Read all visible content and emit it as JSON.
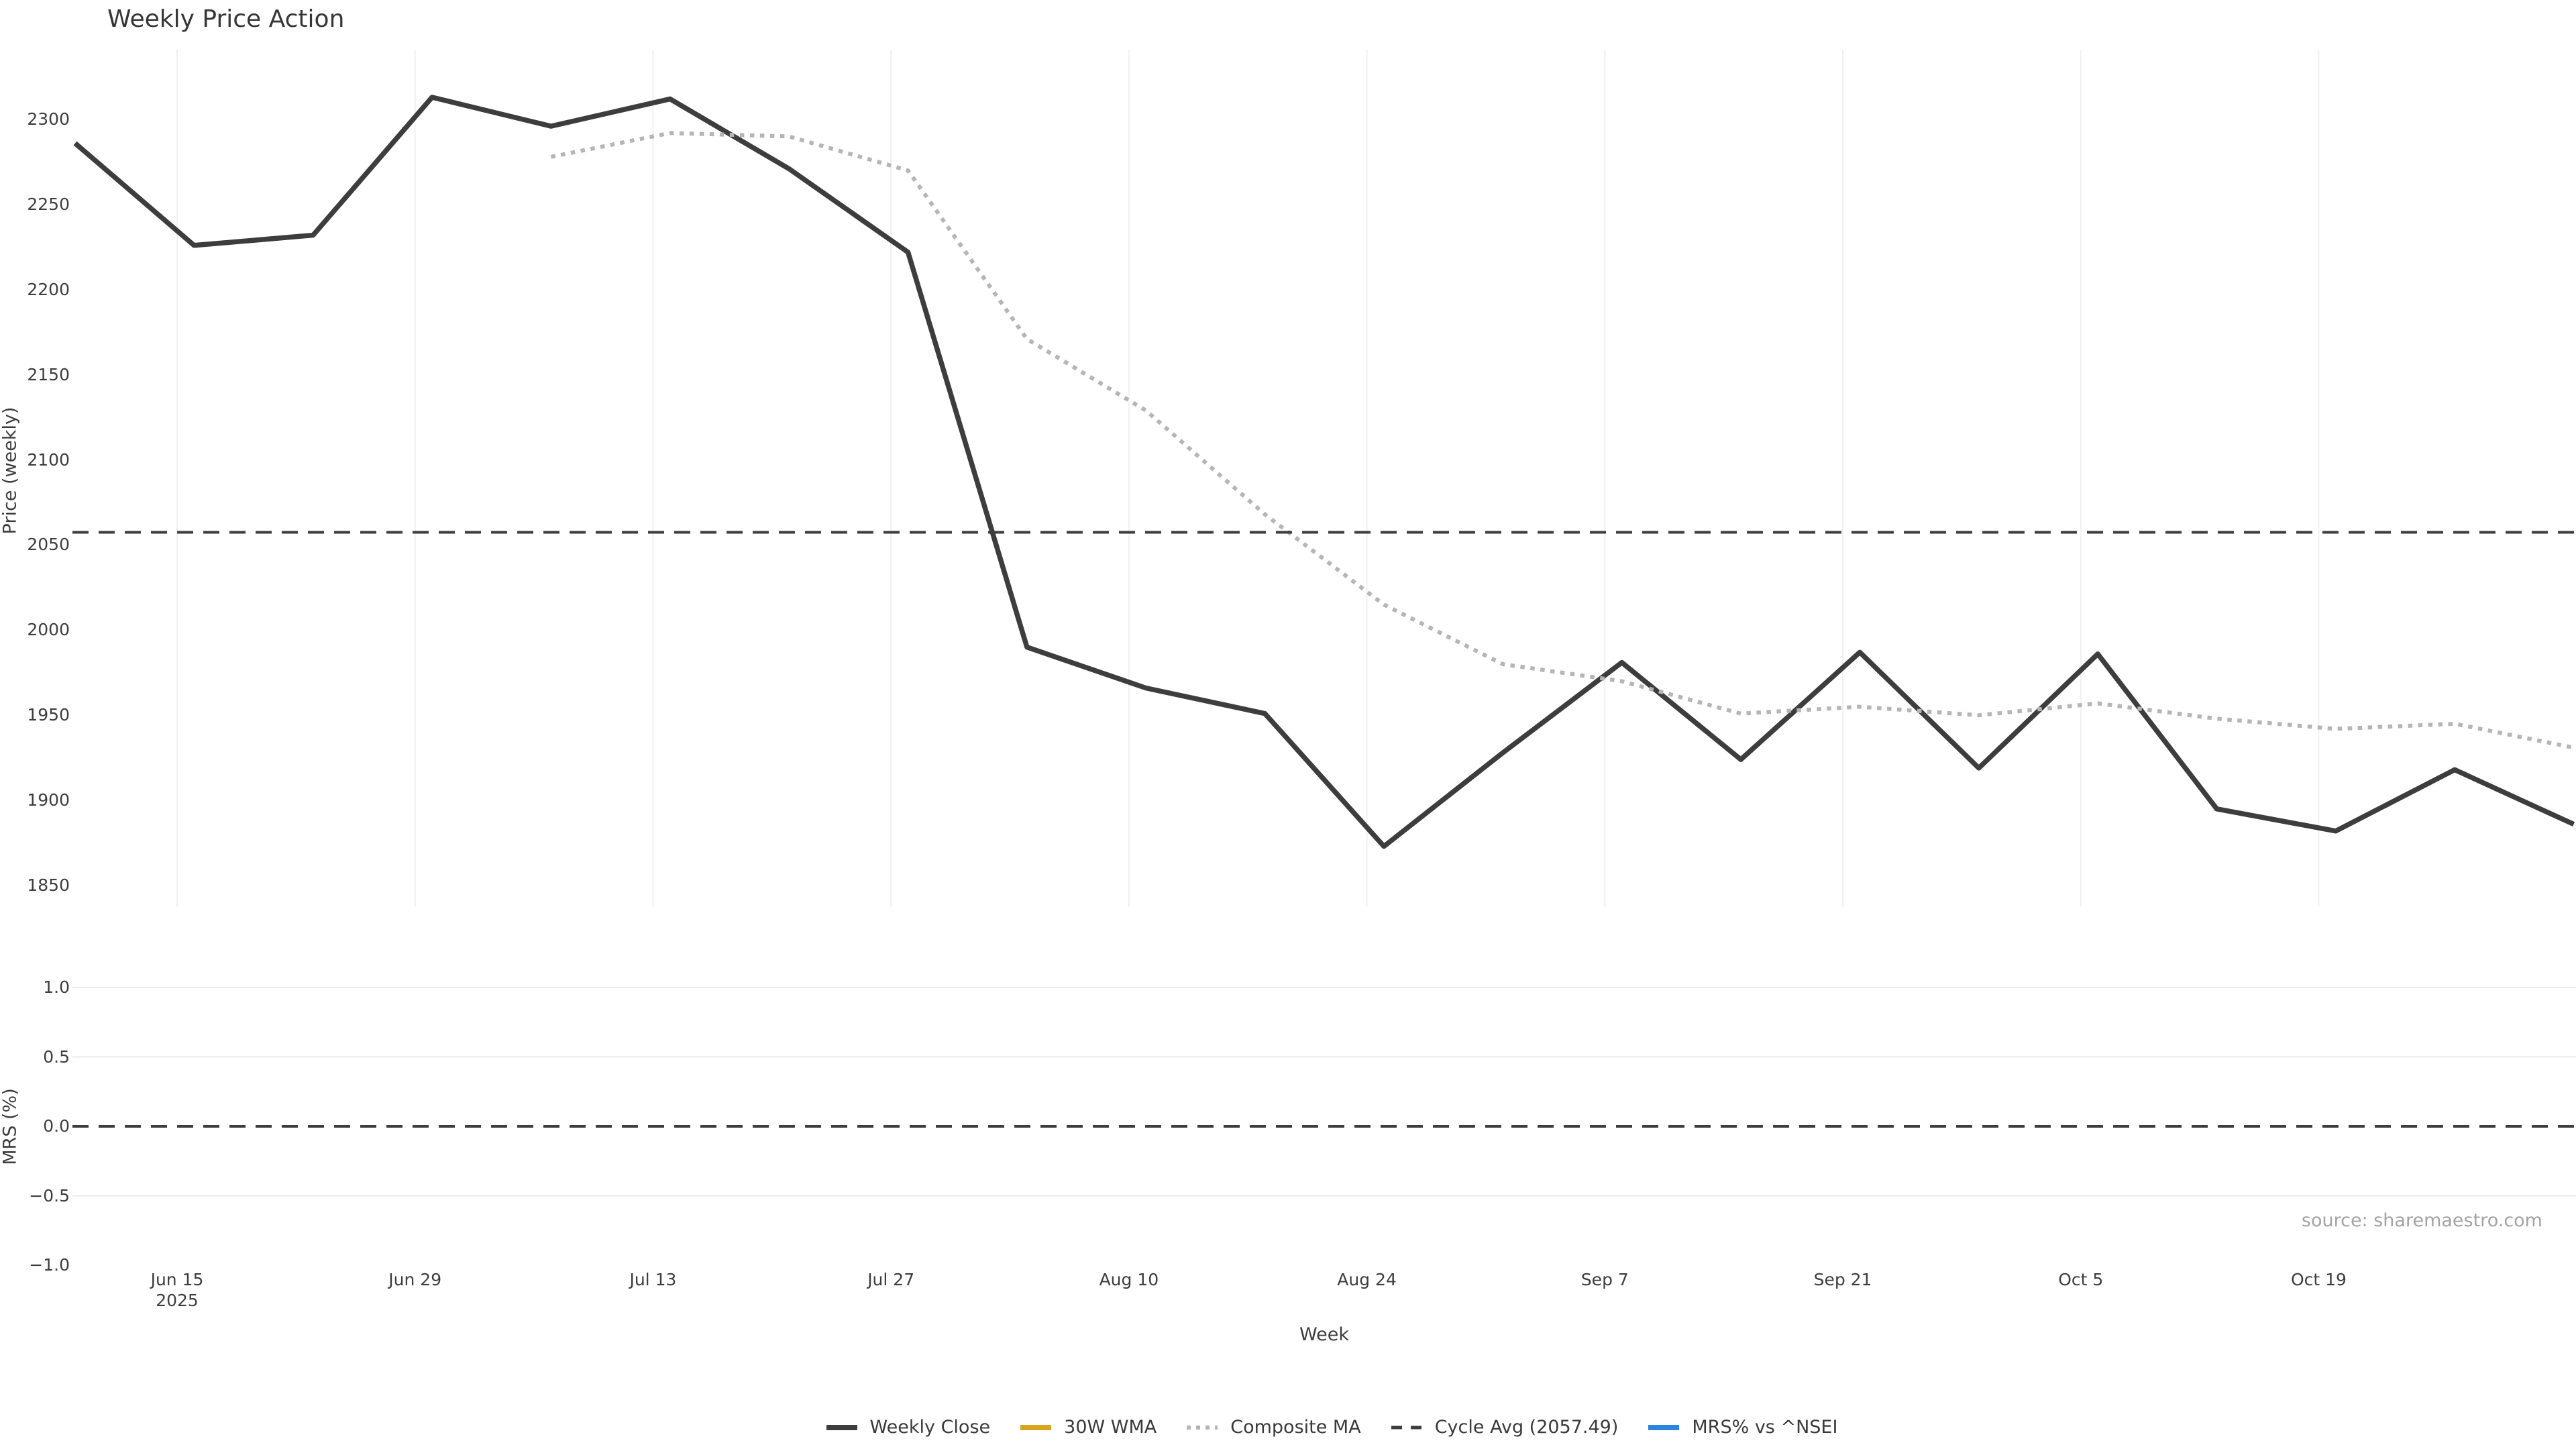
{
  "title": "Weekly Price Action",
  "source_note": "source: sharemaestro.com",
  "xlabel": "Week",
  "price_axis": {
    "label": "Price (weekly)",
    "ticks": [
      "2300",
      "2250",
      "2200",
      "2150",
      "2100",
      "2050",
      "2000",
      "1950",
      "1900",
      "1850"
    ]
  },
  "mrs_axis": {
    "label": "MRS (%)",
    "ticks": [
      "1.0",
      "0.5",
      "0.0",
      "−0.5",
      "−1.0"
    ]
  },
  "xticks": [
    {
      "line1": "Jun 15",
      "line2": "2025"
    },
    {
      "line1": "Jun 29",
      "line2": ""
    },
    {
      "line1": "Jul 13",
      "line2": ""
    },
    {
      "line1": "Jul 27",
      "line2": ""
    },
    {
      "line1": "Aug 10",
      "line2": ""
    },
    {
      "line1": "Aug 24",
      "line2": ""
    },
    {
      "line1": "Sep 7",
      "line2": ""
    },
    {
      "line1": "Sep 21",
      "line2": ""
    },
    {
      "line1": "Oct 5",
      "line2": ""
    },
    {
      "line1": "Oct 19",
      "line2": ""
    }
  ],
  "legend": [
    {
      "label": "Weekly Close",
      "color": "#3d3d3d",
      "style": "solid"
    },
    {
      "label": "30W WMA",
      "color": "#d9a420",
      "style": "solid"
    },
    {
      "label": "Composite MA",
      "color": "#b5b5b5",
      "style": "dotted"
    },
    {
      "label": "Cycle Avg (2057.49)",
      "color": "#3d3d3d",
      "style": "dashed"
    },
    {
      "label": "MRS% vs ^NSEI",
      "color": "#2d86de",
      "style": "solid"
    }
  ],
  "colors": {
    "weekly_close": "#3d3d3d",
    "wma_30w": "#d9a420",
    "composite_ma": "#b5b5b5",
    "cycle_avg": "#3d3d3d",
    "mrs": "#2d86de",
    "grid": "#f0f0f0",
    "grid_mrs": "#ebebee",
    "source_text": "#a3a3a3"
  },
  "chart_data": [
    {
      "panel": "price",
      "type": "line",
      "title": "Weekly Price Action",
      "ylabel": "Price (weekly)",
      "xlabel": "Week",
      "ylim": [
        1840,
        2335
      ],
      "yticks": [
        2300,
        2250,
        2200,
        2150,
        2100,
        2050,
        2000,
        1950,
        1900,
        1850
      ],
      "grid": "vertical-on-xticks",
      "x": [
        "Jun 9",
        "Jun 16",
        "Jun 23",
        "Jun 30",
        "Jul 7",
        "Jul 14",
        "Jul 21",
        "Jul 28",
        "Aug 4",
        "Aug 11",
        "Aug 18",
        "Aug 25",
        "Sep 1",
        "Sep 8",
        "Sep 15",
        "Sep 22",
        "Sep 29",
        "Oct 6",
        "Oct 13",
        "Oct 20",
        "Oct 27",
        "Nov 3"
      ],
      "series": [
        {
          "name": "Weekly Close",
          "style": "solid",
          "color": "#3d3d3d",
          "start_index": 0,
          "values": [
            2286,
            2226,
            2232,
            2313,
            2296,
            2312,
            2271,
            2222,
            1990,
            1966,
            1951,
            1873,
            1928,
            1981,
            1924,
            1987,
            1919,
            1986,
            1895,
            1882,
            1918,
            1886
          ]
        },
        {
          "name": "30W WMA",
          "style": "solid",
          "color": "#d9a420",
          "start_index": 0,
          "values": []
        },
        {
          "name": "Composite MA",
          "style": "dotted",
          "color": "#b5b5b5",
          "start_index": 4,
          "values": [
            2278,
            2292,
            2290,
            2270,
            2171,
            2129,
            2068,
            2015,
            1980,
            1970,
            1951,
            1955,
            1950,
            1957,
            1948,
            1942,
            1945,
            1931
          ]
        },
        {
          "name": "Cycle Avg",
          "style": "dashed",
          "color": "#3d3d3d",
          "constant": 2057.49
        }
      ]
    },
    {
      "panel": "mrs",
      "type": "line",
      "ylabel": "MRS (%)",
      "ylim": [
        -1.25,
        1.25
      ],
      "yticks": [
        1.0,
        0.5,
        0.0,
        -0.5,
        -1.0
      ],
      "gridlines_at": [
        1.0,
        0.5,
        -0.5
      ],
      "series": [
        {
          "name": "MRS% vs ^NSEI",
          "style": "solid",
          "color": "#2d86de",
          "values": []
        },
        {
          "name": "Zero line",
          "style": "dashed",
          "color": "#3d3d3d",
          "constant": 0
        }
      ]
    }
  ]
}
